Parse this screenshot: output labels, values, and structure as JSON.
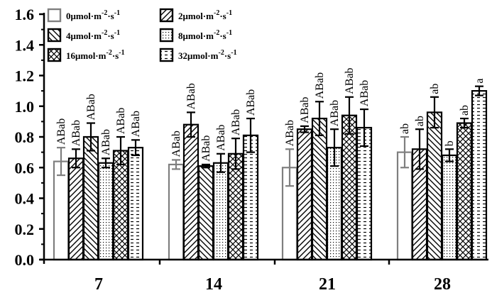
{
  "chart_data": {
    "type": "bar",
    "categories": [
      "7",
      "14",
      "21",
      "28"
    ],
    "ylim": [
      0.0,
      1.6
    ],
    "yticks": [
      "0.0",
      "0.2",
      "0.4",
      "0.6",
      "0.8",
      "1.0",
      "1.2",
      "1.4",
      "1.6"
    ],
    "legend_position": "top-left",
    "series": [
      {
        "name": "0μmol·m-2·s-1",
        "superscripts": [
          "-2",
          "-1"
        ],
        "base": "0μmol·m",
        "mid": "·s",
        "pattern": "hollow-gray",
        "values": [
          0.64,
          0.62,
          0.6,
          0.7
        ],
        "errors": [
          0.09,
          0.03,
          0.12,
          0.1
        ],
        "labels": [
          "ABab",
          "ABab",
          "ABab",
          "ab"
        ]
      },
      {
        "name": "2μmol·m-2·s-1",
        "pattern": "diag-right",
        "values": [
          0.66,
          0.88,
          0.85,
          0.72
        ],
        "errors": [
          0.06,
          0.08,
          0.02,
          0.13
        ],
        "labels": [
          "ABab",
          "ABab",
          "ABab",
          "ab"
        ]
      },
      {
        "name": "4μmol·m-2·s-1",
        "pattern": "diag-left",
        "values": [
          0.8,
          0.61,
          0.92,
          0.96
        ],
        "errors": [
          0.09,
          0.01,
          0.11,
          0.1
        ],
        "labels": [
          "ABab",
          "ABab",
          "ABab",
          "ab"
        ]
      },
      {
        "name": "8μmol·m-2·s-1",
        "pattern": "dots",
        "values": [
          0.63,
          0.63,
          0.73,
          0.68
        ],
        "errors": [
          0.03,
          0.06,
          0.12,
          0.04
        ],
        "labels": [
          "ABab",
          "ABab",
          "ABab",
          "b"
        ]
      },
      {
        "name": "16μmol·m-2·s-1",
        "pattern": "cross",
        "values": [
          0.71,
          0.69,
          0.94,
          0.89
        ],
        "errors": [
          0.09,
          0.1,
          0.12,
          0.03
        ],
        "labels": [
          "ABab",
          "ABab",
          "ABab",
          "ab"
        ]
      },
      {
        "name": "32μmol·m-2·s-1",
        "pattern": "dashes",
        "values": [
          0.73,
          0.81,
          0.86,
          1.1
        ],
        "errors": [
          0.05,
          0.11,
          0.12,
          0.03
        ],
        "labels": [
          "ABab",
          "ABab",
          "ABab",
          "a"
        ]
      }
    ],
    "legend": [
      {
        "base": "0μmol·m",
        "sup1": "-2",
        "mid": "·s",
        "sup2": "-1"
      },
      {
        "base": "2μmol·m",
        "sup1": "-2",
        "mid": "·s",
        "sup2": "-1"
      },
      {
        "base": "4μmol·m",
        "sup1": "-2",
        "mid": "·s",
        "sup2": "-1"
      },
      {
        "base": "8μmol·m",
        "sup1": "-2",
        "mid": "·s",
        "sup2": "-1"
      },
      {
        "base": "16μmol·m",
        "sup1": "-2",
        "mid": "·s",
        "sup2": "-1"
      },
      {
        "base": "32μmol·m",
        "sup1": "-2",
        "mid": "·s",
        "sup2": "-1"
      }
    ]
  }
}
